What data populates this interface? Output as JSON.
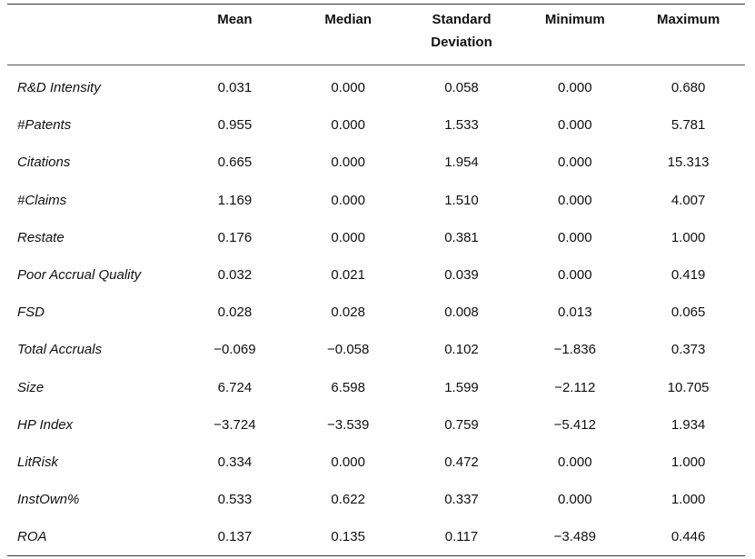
{
  "table": {
    "headers": [
      "",
      "Mean",
      "Median",
      "Standard Deviation",
      "Minimum",
      "Maximum"
    ],
    "rows": [
      {
        "label": "R&D Intensity",
        "values": [
          "0.031",
          "0.000",
          "0.058",
          "0.000",
          "0.680"
        ]
      },
      {
        "label": "#Patents",
        "values": [
          "0.955",
          "0.000",
          "1.533",
          "0.000",
          "5.781"
        ]
      },
      {
        "label": "Citations",
        "values": [
          "0.665",
          "0.000",
          "1.954",
          "0.000",
          "15.313"
        ]
      },
      {
        "label": "#Claims",
        "values": [
          "1.169",
          "0.000",
          "1.510",
          "0.000",
          "4.007"
        ]
      },
      {
        "label": "Restate",
        "values": [
          "0.176",
          "0.000",
          "0.381",
          "0.000",
          "1.000"
        ]
      },
      {
        "label": "Poor Accrual Quality",
        "values": [
          "0.032",
          "0.021",
          "0.039",
          "0.000",
          "0.419"
        ]
      },
      {
        "label": "FSD",
        "values": [
          "0.028",
          "0.028",
          "0.008",
          "0.013",
          "0.065"
        ]
      },
      {
        "label": "Total Accruals",
        "values": [
          "−0.069",
          "−0.058",
          "0.102",
          "−1.836",
          "0.373"
        ]
      },
      {
        "label": "Size",
        "values": [
          "6.724",
          "6.598",
          "1.599",
          "−2.112",
          "10.705"
        ]
      },
      {
        "label": "HP Index",
        "values": [
          "−3.724",
          "−3.539",
          "0.759",
          "−5.412",
          "1.934"
        ]
      },
      {
        "label": "LitRisk",
        "values": [
          "0.334",
          "0.000",
          "0.472",
          "0.000",
          "1.000"
        ]
      },
      {
        "label": "InstOwn%",
        "values": [
          "0.533",
          "0.622",
          "0.337",
          "0.000",
          "1.000"
        ]
      },
      {
        "label": "ROA",
        "values": [
          "0.137",
          "0.135",
          "0.117",
          "−3.489",
          "0.446"
        ]
      }
    ]
  }
}
